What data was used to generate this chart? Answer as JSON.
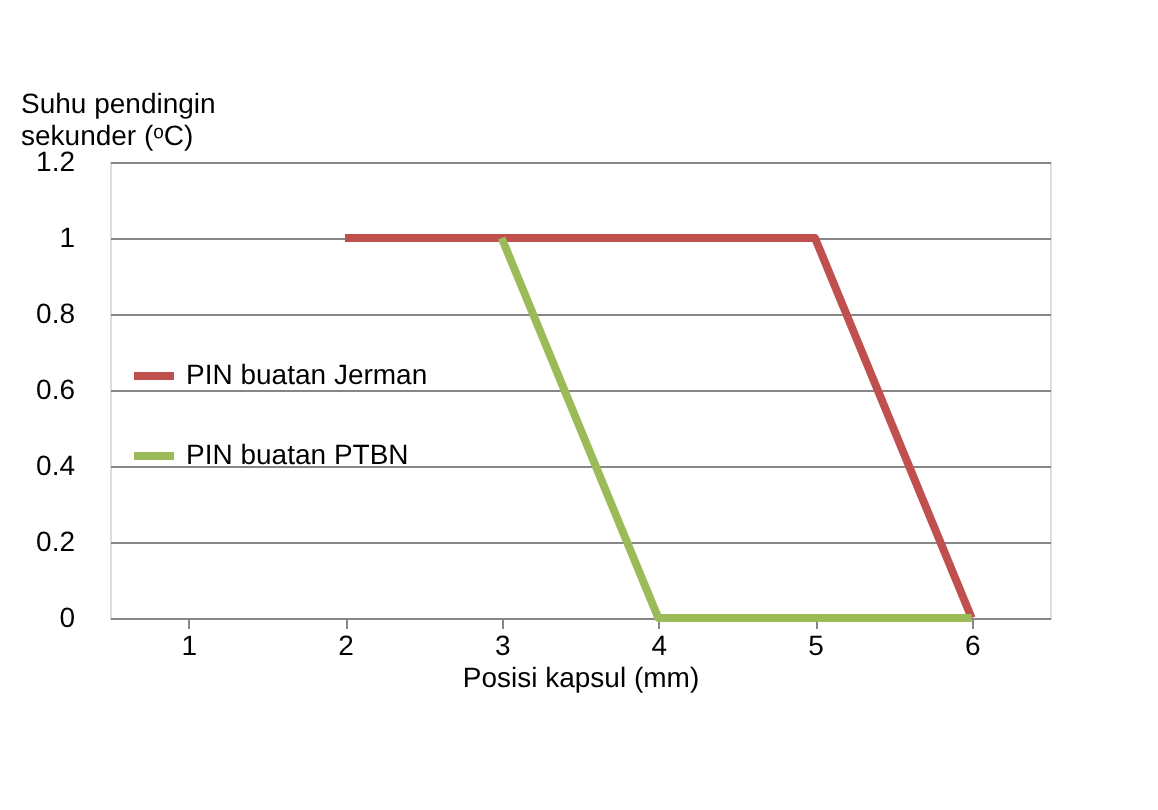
{
  "chart_data": {
    "type": "line",
    "xlabel": "Posisi kapsul (mm)",
    "ylabel": "Suhu pendingin sekunder (ᵒC)",
    "categories": [
      "1",
      "2",
      "3",
      "4",
      "5",
      "6"
    ],
    "series": [
      {
        "name": "PIN buatan Jerman",
        "color": "#c0504d",
        "values": [
          null,
          1,
          1,
          1,
          1,
          0
        ]
      },
      {
        "name": "PIN buatan PTBN",
        "color": "#9bbb59",
        "values": [
          null,
          null,
          1,
          0,
          0,
          0
        ]
      }
    ],
    "ylim": [
      0,
      1.2
    ],
    "yticks": [
      0,
      0.2,
      0.4,
      0.6,
      0.8,
      1,
      1.2
    ],
    "grid": "y",
    "legend": "left",
    "marker": "none",
    "line_style": "solid"
  }
}
